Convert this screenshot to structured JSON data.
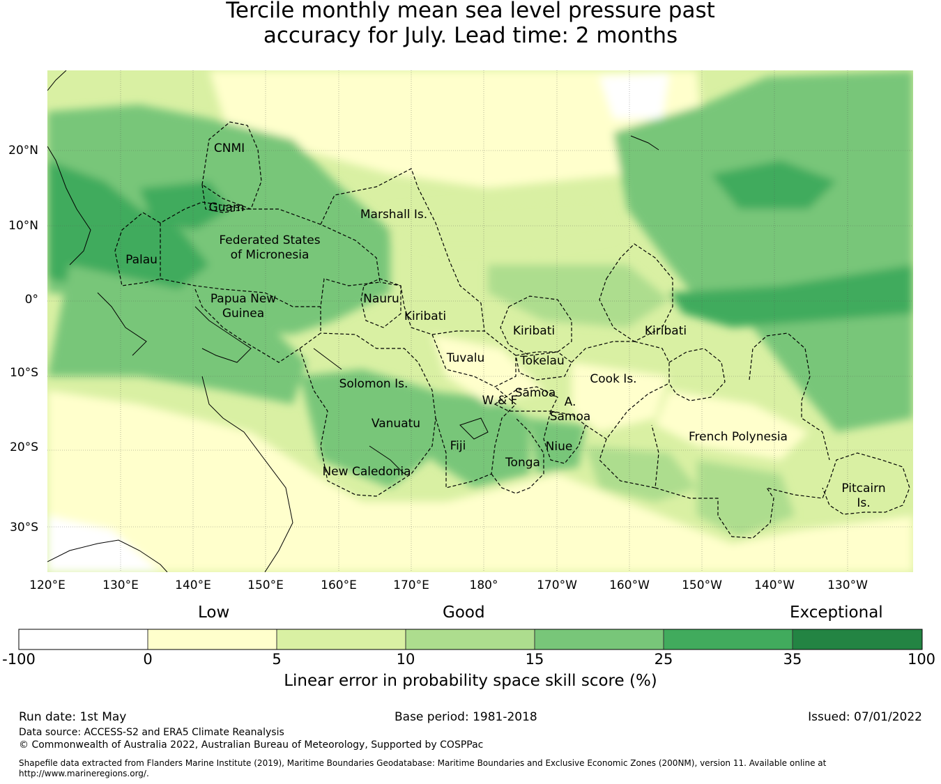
{
  "title": {
    "line1": "Tercile monthly mean sea level pressure past",
    "line2": "accuracy for July. Lead time: 2 months"
  },
  "map": {
    "lat_labels": [
      "20°N",
      "10°N",
      "0°",
      "10°S",
      "20°S",
      "30°S"
    ],
    "lon_labels": [
      "120°E",
      "130°E",
      "140°E",
      "150°E",
      "160°E",
      "170°E",
      "180°",
      "170°W",
      "160°W",
      "150°W",
      "140°W",
      "130°W"
    ],
    "regions": [
      "CNMI",
      "Guam",
      "Marshall Is.",
      "Federated States",
      "of Micronesia",
      "Palau",
      "Papua New",
      "Guinea",
      "Nauru",
      "Kiribati",
      "Kiribati",
      "Kiribati",
      "Tuvalu",
      "Tokelau",
      "Solomon Is.",
      "Samoa",
      "W & F",
      "A.",
      "Samoa",
      "Cook Is.",
      "Vanuatu",
      "Fiji",
      "Niue",
      "Tonga",
      "French Polynesia",
      "New Caledonia",
      "Pitcairn",
      "Is."
    ]
  },
  "colorbar": {
    "categories": [
      "Low",
      "Good",
      "Exceptional"
    ],
    "ticks": [
      "-100",
      "0",
      "5",
      "10",
      "15",
      "25",
      "35",
      "100"
    ],
    "colors": [
      "#ffffff",
      "#ffffcc",
      "#d9f0a3",
      "#addd8e",
      "#78c679",
      "#41ab5d",
      "#238443"
    ],
    "label": "Linear error in probability space skill score (%)"
  },
  "footer": {
    "run_date": "Run date: 1st May",
    "base_period": "Base period: 1981-2018",
    "issued": "Issued: 07/01/2022",
    "data_source": "Data source: ACCESS-S2 and ERA5 Climate Reanalysis",
    "copyright": "© Commonwealth of Australia 2022, Australian Bureau of Meteorology, Supported by COSPPac",
    "shapefile_line1": "Shapefile data extracted from Flanders Marine Institute (2019), Maritime Boundaries Geodatabase: Maritime Boundaries and Exclusive Economic Zones (200NM), version 11. Available online at",
    "shapefile_line2": "http://www.marineregions.org/."
  }
}
